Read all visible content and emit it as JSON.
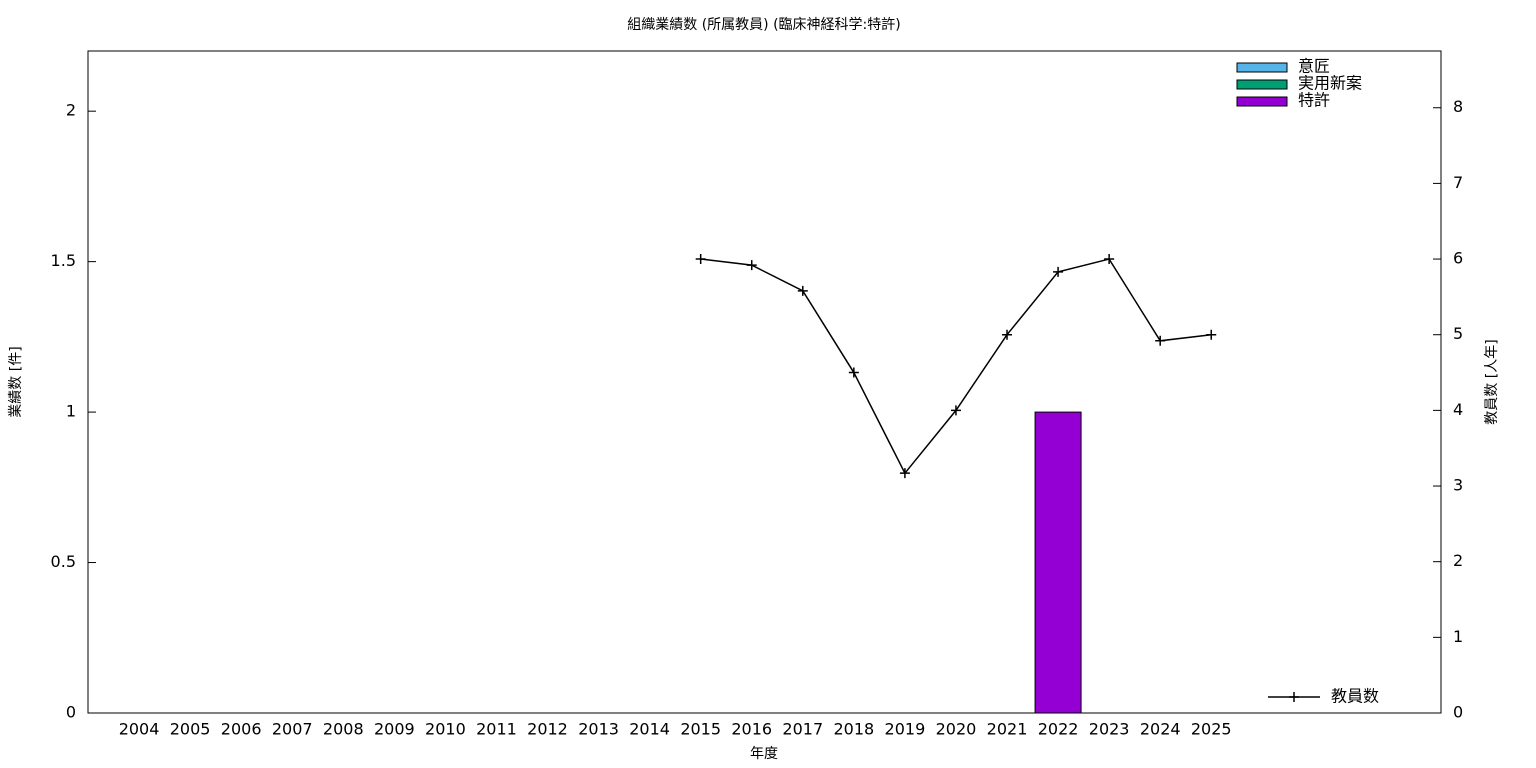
{
  "chart_data": {
    "type": "bar",
    "title": "組織業績数 (所属教員) (臨床神経科学:特許)",
    "x_label": "年度",
    "y_label": "業績数 [件]",
    "y2_label": "教員数 [人年]",
    "categories": [
      "2004",
      "2005",
      "2006",
      "2007",
      "2008",
      "2009",
      "2010",
      "2011",
      "2012",
      "2013",
      "2014",
      "2015",
      "2016",
      "2017",
      "2018",
      "2019",
      "2020",
      "2021",
      "2022",
      "2023",
      "2024",
      "2025"
    ],
    "stacked": true,
    "series": [
      {
        "name": "意匠",
        "color": "#56b4e9",
        "values": [
          0,
          0,
          0,
          0,
          0,
          0,
          0,
          0,
          0,
          0,
          0,
          0,
          0,
          0,
          0,
          0,
          0,
          0,
          0,
          0,
          0,
          0
        ]
      },
      {
        "name": "実用新案",
        "color": "#009e73",
        "values": [
          0,
          0,
          0,
          0,
          0,
          0,
          0,
          0,
          0,
          0,
          0,
          0,
          0,
          0,
          0,
          0,
          0,
          0,
          0,
          0,
          0,
          0
        ]
      },
      {
        "name": "特許",
        "color": "#9400d3",
        "values": [
          0,
          0,
          0,
          0,
          0,
          0,
          0,
          0,
          0,
          0,
          0,
          0,
          0,
          0,
          0,
          0,
          0,
          0,
          1,
          0,
          0,
          0
        ]
      },
      {
        "name": "教員数",
        "type": "line",
        "axis": "y2",
        "color": "#000000",
        "values": [
          null,
          null,
          null,
          null,
          null,
          null,
          null,
          null,
          null,
          null,
          null,
          6,
          5.92,
          5.58,
          4.5,
          3.17,
          4,
          5,
          5.83,
          6,
          4.92,
          5
        ]
      }
    ],
    "ylim": [
      0,
      2.2
    ],
    "yticks": [
      0,
      0.5,
      1,
      1.5,
      2
    ],
    "y2lim": [
      0,
      8.75
    ],
    "y2ticks": [
      0,
      1,
      2,
      3,
      4,
      5,
      6,
      7,
      8
    ],
    "legend": "top-right",
    "line_legend": "bottom-right"
  }
}
